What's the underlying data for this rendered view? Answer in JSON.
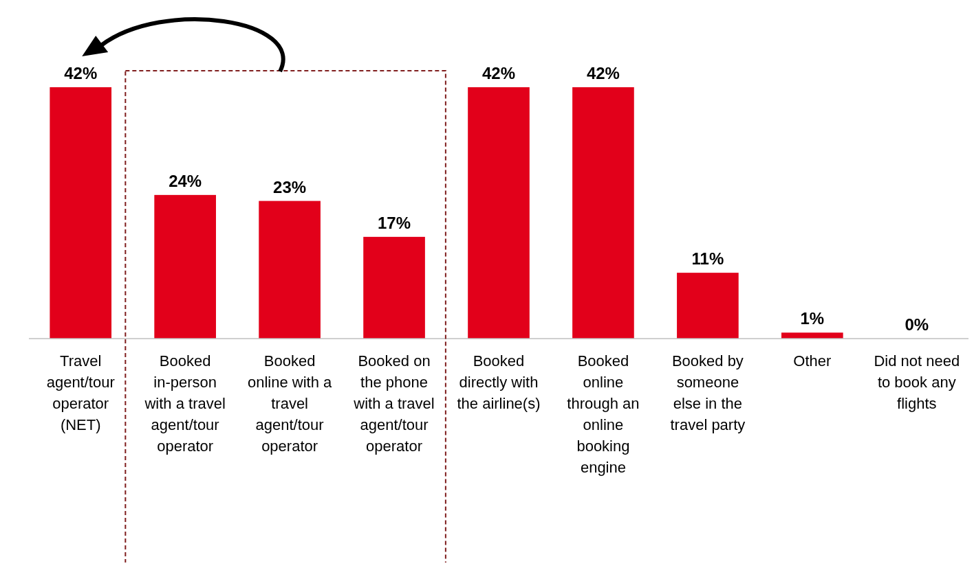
{
  "chart_data": {
    "type": "bar",
    "categories": [
      "Travel agent/tour operator (NET)",
      "Booked in-person with a travel agent/tour operator",
      "Booked online with a travel agent/tour operator",
      "Booked on the phone with a travel agent/tour operator",
      "Booked directly with the airline(s)",
      "Booked online through an online booking engine",
      "Booked by someone else in the travel party",
      "Other",
      "Did not need to book any flights"
    ],
    "values": [
      42,
      24,
      23,
      17,
      42,
      42,
      11,
      1,
      0
    ],
    "color": "#e2001a",
    "relative": false,
    "data_labels": true,
    "value_labels": [
      "42%",
      "24%",
      "23%",
      "17%",
      "42%",
      "42%",
      "11%",
      "1%",
      "0%"
    ]
  }
}
